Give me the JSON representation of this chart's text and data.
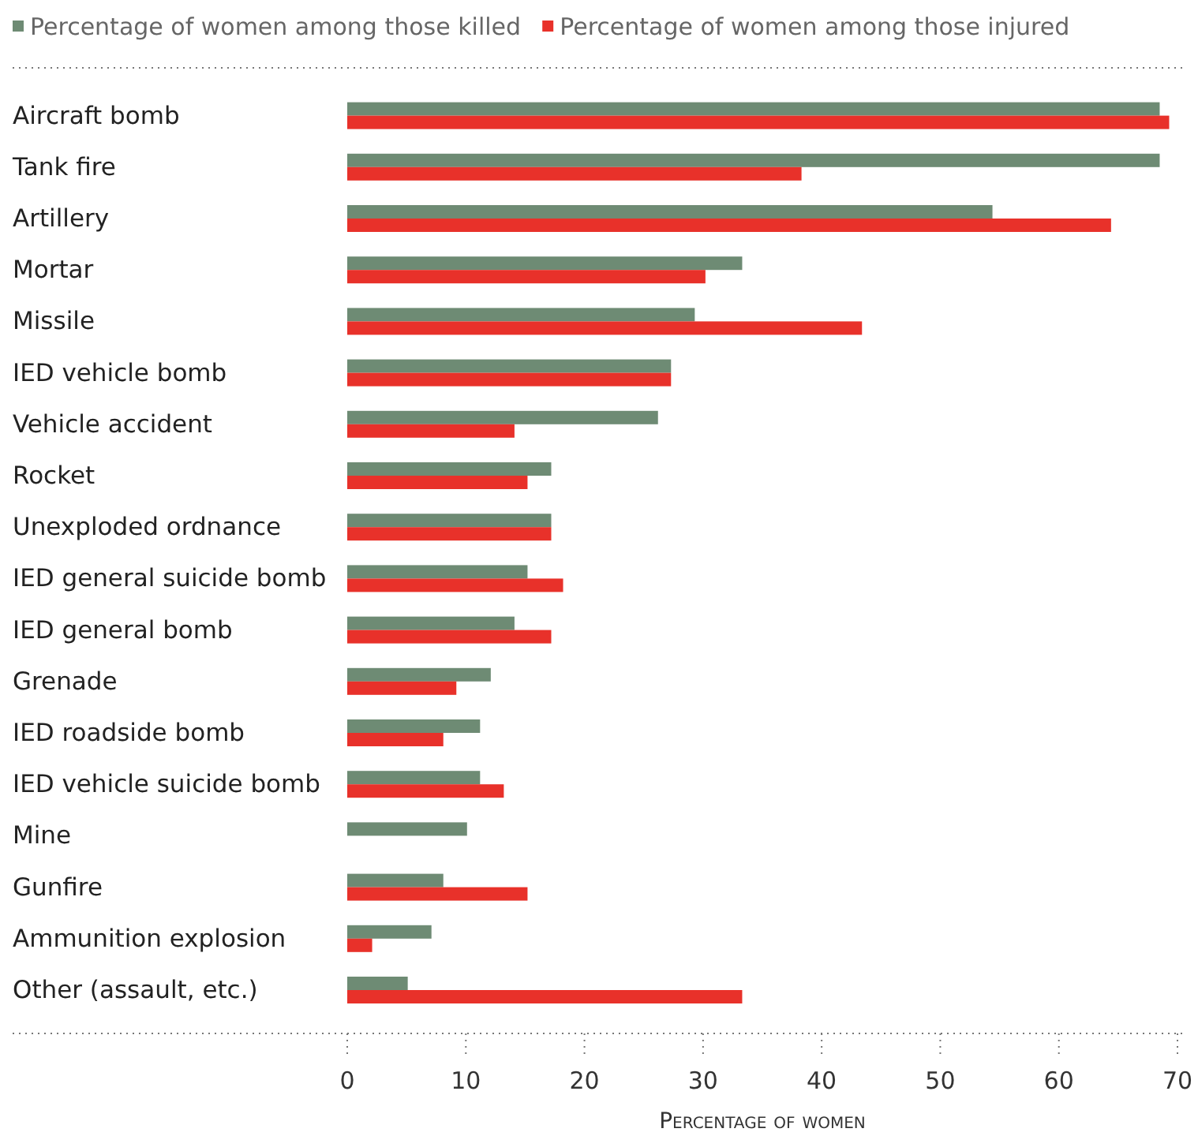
{
  "chart_data": {
    "type": "bar",
    "orientation": "horizontal",
    "xlabel": "Percentage of women",
    "legend": "top",
    "categories": [
      "Aircraft bomb",
      "Tank fire",
      "Artillery",
      "Mortar",
      "Missile",
      "IED vehicle bomb",
      "Vehicle accident",
      "Rocket",
      "Unexploded ordnance",
      "IED general suicide bomb",
      "IED general bomb",
      "Grenade",
      "IED roadside bomb",
      "IED vehicle suicide bomb",
      "Mine",
      "Gunfire",
      "Ammunition explosion",
      "Other (assault, etc.)"
    ],
    "series": [
      {
        "name": "Percentage of women among those killed",
        "color": "#6e8b74",
        "values": [
          68.5,
          68.5,
          54.4,
          33.3,
          29.3,
          27.3,
          26.2,
          17.2,
          17.2,
          15.2,
          14.1,
          12.1,
          11.2,
          11.2,
          10.1,
          8.1,
          7.1,
          5.1
        ]
      },
      {
        "name": "Percentage of women among those injured",
        "color": "#e8312a",
        "values": [
          69.3,
          38.3,
          64.4,
          30.2,
          43.4,
          27.3,
          14.1,
          15.2,
          17.2,
          18.2,
          17.2,
          9.2,
          8.1,
          13.2,
          0,
          15.2,
          2.1,
          33.3
        ]
      }
    ],
    "xlim": [
      0,
      70
    ],
    "xticks": [
      0,
      10,
      20,
      30,
      40,
      50,
      60,
      70
    ]
  }
}
